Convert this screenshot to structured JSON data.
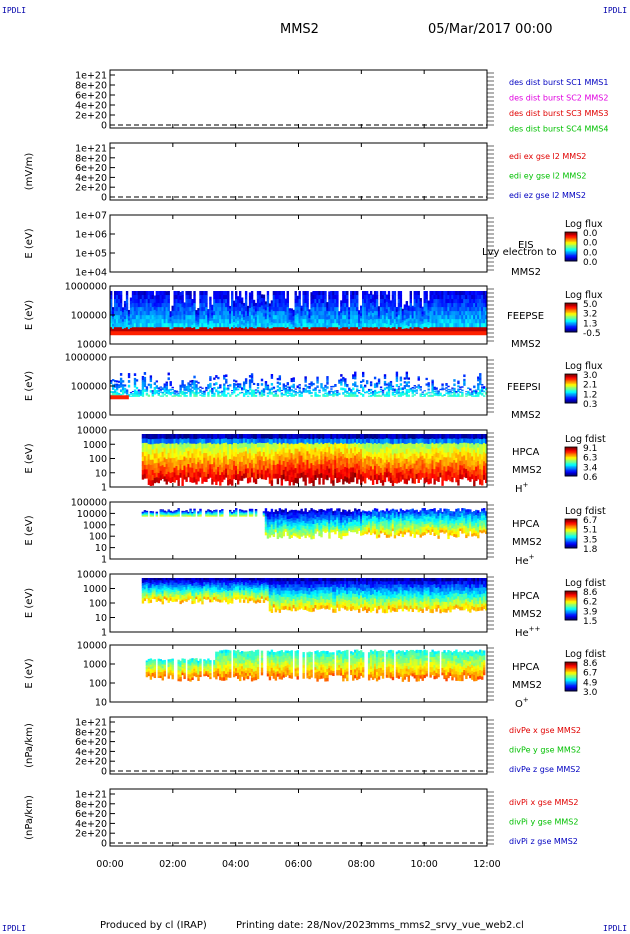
{
  "corner_labels": {
    "tl": "IPDLI",
    "tr": "IPDLI",
    "bl": "IPDLI",
    "br": "IPDLI"
  },
  "header": {
    "spacecraft": "MMS2",
    "date": "05/Mar/2017 00:00"
  },
  "footer": {
    "producer": "Produced by cl (IRAP)",
    "printing": "Printing date: 28/Nov/2023",
    "script": "mms_mms2_srvy_vue_web2.cl"
  },
  "colors": {
    "red": "#e00000",
    "green": "#00c000",
    "blue": "#0000c0",
    "magenta": "#e000e0"
  },
  "chart_data": [
    {
      "type": "line",
      "id": "des-dist-burst",
      "ylabel": "",
      "yticks": [
        "0",
        "2e+20",
        "4e+20",
        "6e+20",
        "8e+20",
        "1e+21"
      ],
      "series": [
        {
          "name": "des dist burst SC1 MMS1",
          "color": "#0000c0"
        },
        {
          "name": "des dist burst SC2 MMS2",
          "color": "#e000e0"
        },
        {
          "name": "des dist burst SC3 MMS3",
          "color": "#e00000"
        },
        {
          "name": "des dist burst SC4 MMS4",
          "color": "#00c000"
        }
      ],
      "dashed_zero_line": true
    },
    {
      "type": "line",
      "id": "edi-e-gse",
      "ylabel": "(mV/m)",
      "yticks": [
        "0",
        "2e+20",
        "4e+20",
        "6e+20",
        "8e+20",
        "1e+21"
      ],
      "series": [
        {
          "name": "edi ex gse l2 MMS2",
          "color": "#e00000"
        },
        {
          "name": "edi ey gse l2 MMS2",
          "color": "#00c000"
        },
        {
          "name": "edi ez gse l2 MMS2",
          "color": "#0000c0"
        }
      ],
      "dashed_zero_line": true
    },
    {
      "type": "heatmap",
      "id": "eis",
      "ylabel": "E (eV)",
      "yticks": [
        "1e+04",
        "1e+05",
        "1e+06",
        "1e+07"
      ],
      "instrument": "EIS",
      "overlay_text": "Lvy electron to",
      "spacecraft": "MMS2",
      "colorbar": {
        "title": "Log flux",
        "ticks": [
          "0.0",
          "0.0",
          "0.0",
          "0.0"
        ]
      },
      "empty": true
    },
    {
      "type": "heatmap",
      "id": "feepse",
      "ylabel": "E (eV)",
      "yticks": [
        "10000",
        "100000",
        "1000000"
      ],
      "instrument": "FEEPSE",
      "spacecraft": "MMS2",
      "colorbar": {
        "title": "Log flux",
        "ticks": [
          "5.0",
          "3.2",
          "1.3",
          "-0.5"
        ]
      }
    },
    {
      "type": "heatmap",
      "id": "feepsi",
      "ylabel": "E (eV)",
      "yticks": [
        "10000",
        "100000",
        "1000000"
      ],
      "instrument": "FEEPSI",
      "spacecraft": "MMS2",
      "colorbar": {
        "title": "Log flux",
        "ticks": [
          "3.0",
          "2.1",
          "1.2",
          "0.3"
        ]
      }
    },
    {
      "type": "heatmap",
      "id": "hpca-h",
      "ylabel": "E (eV)",
      "yticks": [
        "1",
        "10",
        "100",
        "1000",
        "10000"
      ],
      "instrument": "HPCA",
      "spacecraft": "MMS2",
      "species": "H",
      "species_sup": "+",
      "colorbar": {
        "title": "Log fdist",
        "ticks": [
          "9.1",
          "6.3",
          "3.4",
          "0.6"
        ]
      }
    },
    {
      "type": "heatmap",
      "id": "hpca-he1",
      "ylabel": "E (eV)",
      "yticks": [
        "1",
        "10",
        "100",
        "1000",
        "10000",
        "100000"
      ],
      "instrument": "HPCA",
      "spacecraft": "MMS2",
      "species": "He",
      "species_sup": "+",
      "colorbar": {
        "title": "Log fdist",
        "ticks": [
          "6.7",
          "5.1",
          "3.5",
          "1.8"
        ]
      }
    },
    {
      "type": "heatmap",
      "id": "hpca-he2",
      "ylabel": "E (eV)",
      "yticks": [
        "1",
        "10",
        "100",
        "1000",
        "10000"
      ],
      "instrument": "HPCA",
      "spacecraft": "MMS2",
      "species": "He",
      "species_sup": "++",
      "colorbar": {
        "title": "Log fdist",
        "ticks": [
          "8.6",
          "6.2",
          "3.9",
          "1.5"
        ]
      }
    },
    {
      "type": "heatmap",
      "id": "hpca-o",
      "ylabel": "E (eV)",
      "yticks": [
        "10",
        "100",
        "1000",
        "10000"
      ],
      "instrument": "HPCA",
      "spacecraft": "MMS2",
      "species": "O",
      "species_sup": "+",
      "colorbar": {
        "title": "Log fdist",
        "ticks": [
          "8.6",
          "6.7",
          "4.9",
          "3.0"
        ]
      }
    },
    {
      "type": "line",
      "id": "divpe",
      "ylabel": "(nPa/km)",
      "yticks": [
        "0",
        "2e+20",
        "4e+20",
        "6e+20",
        "8e+20",
        "1e+21"
      ],
      "series": [
        {
          "name": "divPe x gse MMS2",
          "color": "#e00000"
        },
        {
          "name": "divPe y gse MMS2",
          "color": "#00c000"
        },
        {
          "name": "divPe z gse MMS2",
          "color": "#0000c0"
        }
      ],
      "dashed_zero_line": true
    },
    {
      "type": "line",
      "id": "divpi",
      "ylabel": "(nPa/km)",
      "yticks": [
        "0",
        "2e+20",
        "4e+20",
        "6e+20",
        "8e+20",
        "1e+21"
      ],
      "series": [
        {
          "name": "divPi x gse MMS2",
          "color": "#e00000"
        },
        {
          "name": "divPi y gse MMS2",
          "color": "#00c000"
        },
        {
          "name": "divPi z gse MMS2",
          "color": "#0000c0"
        }
      ],
      "dashed_zero_line": true
    }
  ],
  "x_axis": {
    "ticks": [
      "00:00",
      "02:00",
      "04:00",
      "06:00",
      "08:00",
      "10:00",
      "12:00"
    ],
    "range_hours": [
      0,
      12
    ]
  }
}
